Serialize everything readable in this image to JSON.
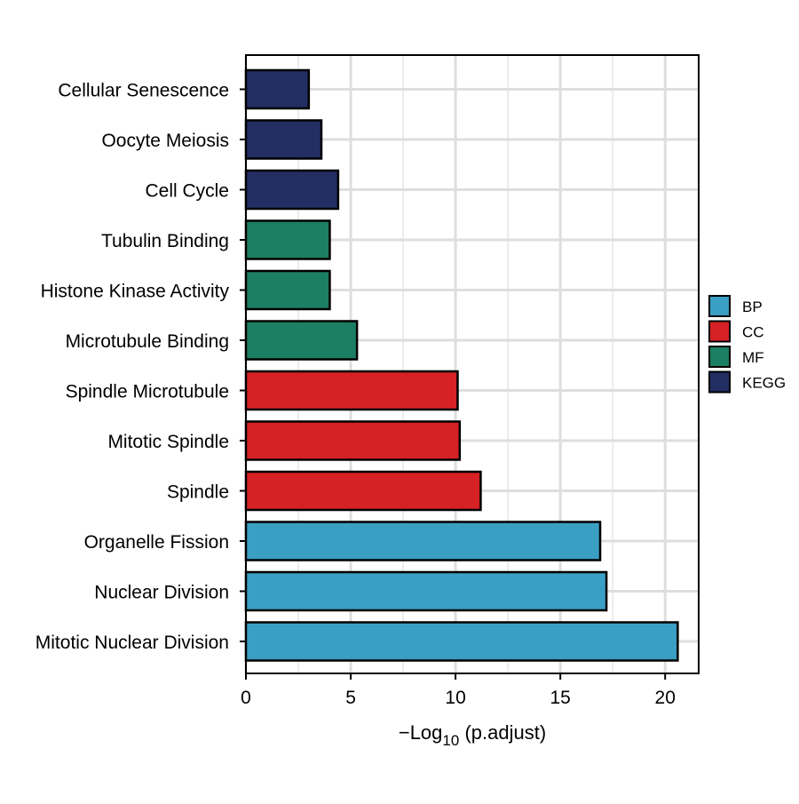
{
  "chart_data": {
    "type": "bar",
    "orientation": "horizontal",
    "title": "",
    "xlabel": {
      "prefix": "−Log",
      "subscript": "10",
      "suffix": " (p.adjust)"
    },
    "ylabel": "",
    "xlim": [
      0,
      21.6
    ],
    "xticks": [
      0,
      5,
      10,
      15,
      20
    ],
    "grid": true,
    "legend_position": "right",
    "categories": [
      "Mitotic Nuclear Division",
      "Nuclear Division",
      "Organelle Fission",
      "Spindle",
      "Mitotic Spindle",
      "Spindle Microtubule",
      "Microtubule Binding",
      "Histone Kinase Activity",
      "Tubulin Binding",
      "Cell Cycle",
      "Oocyte Meiosis",
      "Cellular Senescence"
    ],
    "values": [
      20.6,
      17.2,
      16.9,
      11.2,
      10.2,
      10.1,
      5.3,
      4.0,
      4.0,
      4.4,
      3.6,
      3.0
    ],
    "groups": [
      "BP",
      "BP",
      "BP",
      "CC",
      "CC",
      "CC",
      "MF",
      "MF",
      "MF",
      "KEGG",
      "KEGG",
      "KEGG"
    ],
    "legend": [
      {
        "label": "BP",
        "color": "#3a9fc3"
      },
      {
        "label": "CC",
        "color": "#d62125"
      },
      {
        "label": "MF",
        "color": "#1c7e63"
      },
      {
        "label": "KEGG",
        "color": "#232e63"
      }
    ]
  }
}
